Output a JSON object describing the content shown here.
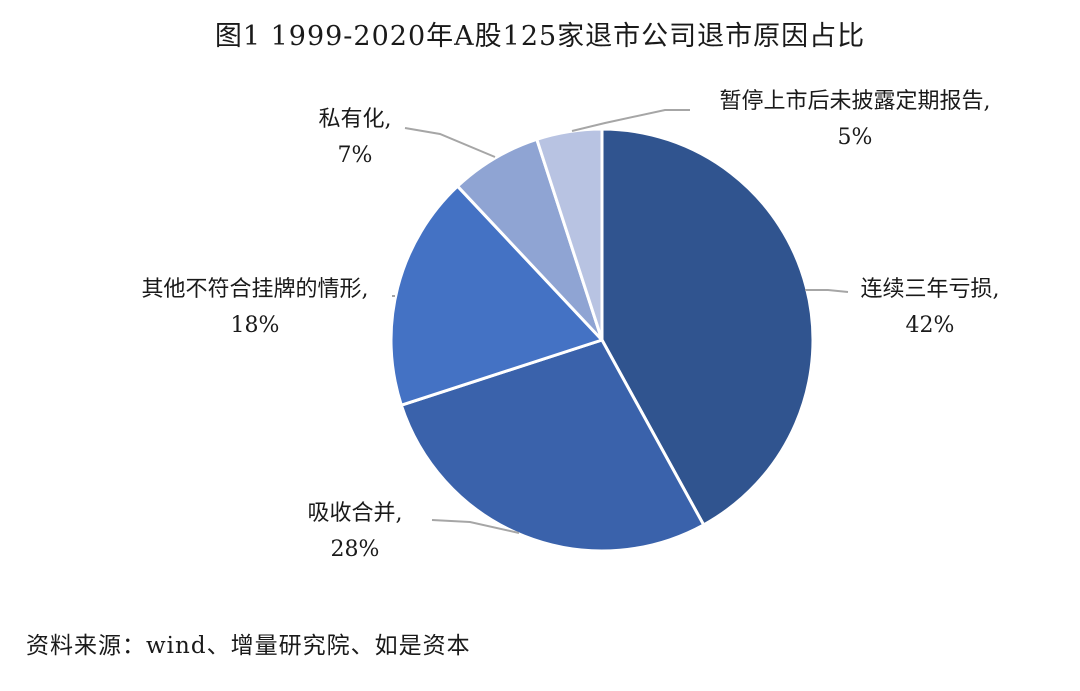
{
  "figure": {
    "title": "图1   1999-2020年A股125家退市公司退市原因占比",
    "source": "资料来源：wind、增量研究院、如是资本"
  },
  "chart_data": {
    "type": "pie",
    "title": "图1   1999-2020年A股125家退市公司退市原因占比",
    "unit": "%",
    "slices": [
      {
        "label": "连续三年亏损",
        "value": 42,
        "value_label": "42%",
        "color": "#30548F"
      },
      {
        "label": "吸收合并",
        "value": 28,
        "value_label": "28%",
        "color": "#3A62AB"
      },
      {
        "label": "其他不符合挂牌的情形",
        "value": 18,
        "value_label": "18%",
        "color": "#4472C4"
      },
      {
        "label": "私有化",
        "value": 7,
        "value_label": "7%",
        "color": "#8FA4D3"
      },
      {
        "label": "暂停上市后未披露定期报告",
        "value": 5,
        "value_label": "5%",
        "color": "#B8C3E2"
      }
    ],
    "legend": "none",
    "label_style": "category, value with leader lines"
  }
}
